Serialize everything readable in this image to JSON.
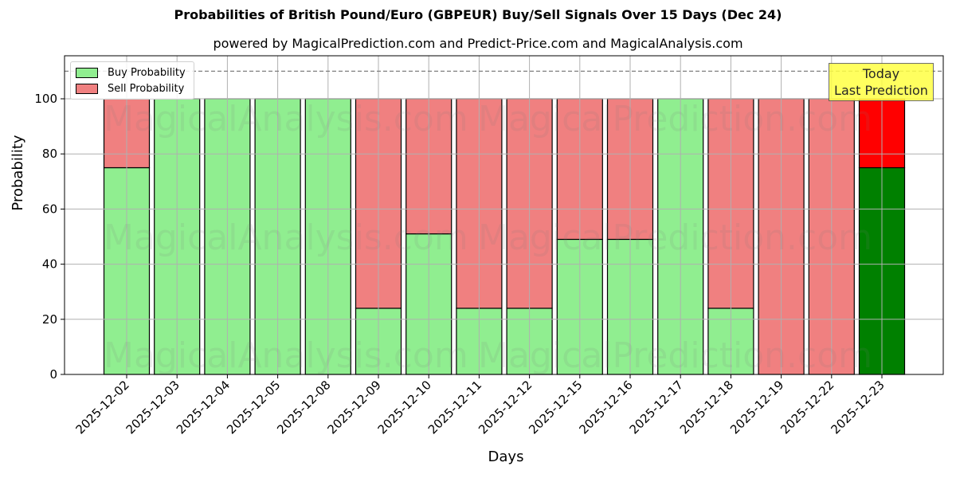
{
  "chart_data": {
    "type": "bar",
    "stacked": true,
    "title": "Probabilities of British Pound/Euro (GBPEUR) Buy/Sell Signals Over 15 Days (Dec 24)",
    "subtitle": "powered by MagicalPrediction.com and Predict-Price.com and MagicalAnalysis.com",
    "xlabel": "Days",
    "ylabel": "Probability",
    "ylim": [
      0,
      115
    ],
    "yticks": [
      0,
      20,
      40,
      60,
      80,
      100
    ],
    "grid": true,
    "legend_position": "upper left",
    "reference_line": {
      "y": 110,
      "style": "dashed",
      "color": "#808080"
    },
    "categories": [
      "2025-12-02",
      "2025-12-03",
      "2025-12-04",
      "2025-12-05",
      "2025-12-08",
      "2025-12-09",
      "2025-12-10",
      "2025-12-11",
      "2025-12-12",
      "2025-12-15",
      "2025-12-16",
      "2025-12-17",
      "2025-12-18",
      "2025-12-19",
      "2025-12-22",
      "2025-12-23"
    ],
    "series": [
      {
        "name": "Buy Probability",
        "color": "#90ee90",
        "values": [
          75,
          100,
          100,
          100,
          100,
          24,
          51,
          24,
          24,
          49,
          49,
          100,
          24,
          0,
          0,
          75
        ]
      },
      {
        "name": "Sell Probability",
        "color": "#f08080",
        "values": [
          25,
          0,
          0,
          0,
          0,
          76,
          49,
          76,
          76,
          51,
          51,
          0,
          76,
          100,
          100,
          25
        ]
      }
    ],
    "highlight": {
      "index": 15,
      "buy_color": "#008000",
      "sell_color": "#ff0000",
      "annotation": "Today\nLast Prediction"
    },
    "watermarks": [
      "MagicalAnalysis.com",
      "MagicalPrediction.com"
    ]
  },
  "annotation": {
    "line1": "Today",
    "line2": "Last Prediction"
  },
  "legend": {
    "buy": "Buy Probability",
    "sell": "Sell Probability"
  }
}
